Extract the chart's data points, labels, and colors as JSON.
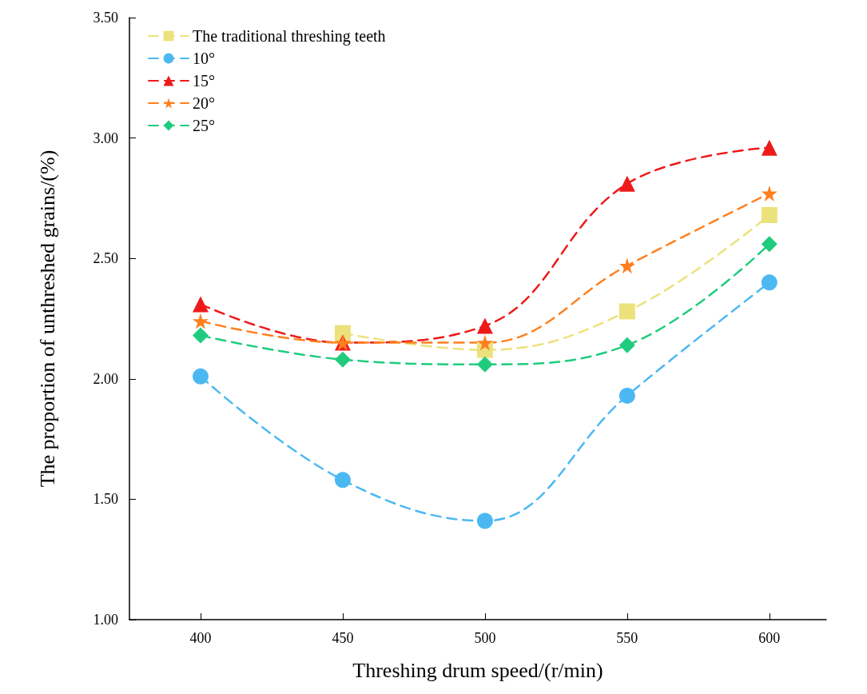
{
  "chart_data": {
    "type": "line",
    "xlabel": "Threshing drum speed/(r/min)",
    "ylabel": "The proportion of unthreshed grains/(%)",
    "x": [
      400,
      450,
      500,
      550,
      600
    ],
    "series": [
      {
        "name": "The traditional threshing teeth",
        "color": "#ece27c",
        "marker": "square",
        "values": [
          null,
          2.19,
          2.12,
          2.28,
          2.68
        ]
      },
      {
        "name": "10°",
        "color": "#4cb8f2",
        "marker": "circle",
        "values": [
          2.01,
          1.58,
          1.41,
          1.93,
          2.4
        ]
      },
      {
        "name": "15°",
        "color": "#ee1a1a",
        "marker": "triangle",
        "values": [
          2.31,
          2.15,
          2.22,
          2.81,
          2.96
        ]
      },
      {
        "name": "20°",
        "color": "#ff7f1e",
        "marker": "star",
        "values": [
          2.24,
          2.15,
          2.15,
          2.47,
          2.77
        ]
      },
      {
        "name": "25°",
        "color": "#1fcc7d",
        "marker": "diamond",
        "values": [
          2.18,
          2.08,
          2.06,
          2.14,
          2.56
        ]
      }
    ],
    "xlim": [
      375,
      620
    ],
    "xticks": [
      400,
      450,
      500,
      550,
      600
    ],
    "ylim": [
      1,
      3.5
    ],
    "yticks": [
      {
        "value": 1,
        "label": "1.00"
      },
      {
        "value": 1.5,
        "label": "1.50"
      },
      {
        "value": 2,
        "label": "2.00"
      },
      {
        "value": 2.5,
        "label": "2.50"
      },
      {
        "value": 3,
        "label": "3.00"
      },
      {
        "value": 3.5,
        "label": "3.50"
      }
    ],
    "grid": false,
    "legend": "top left",
    "line_style": "dashed"
  }
}
